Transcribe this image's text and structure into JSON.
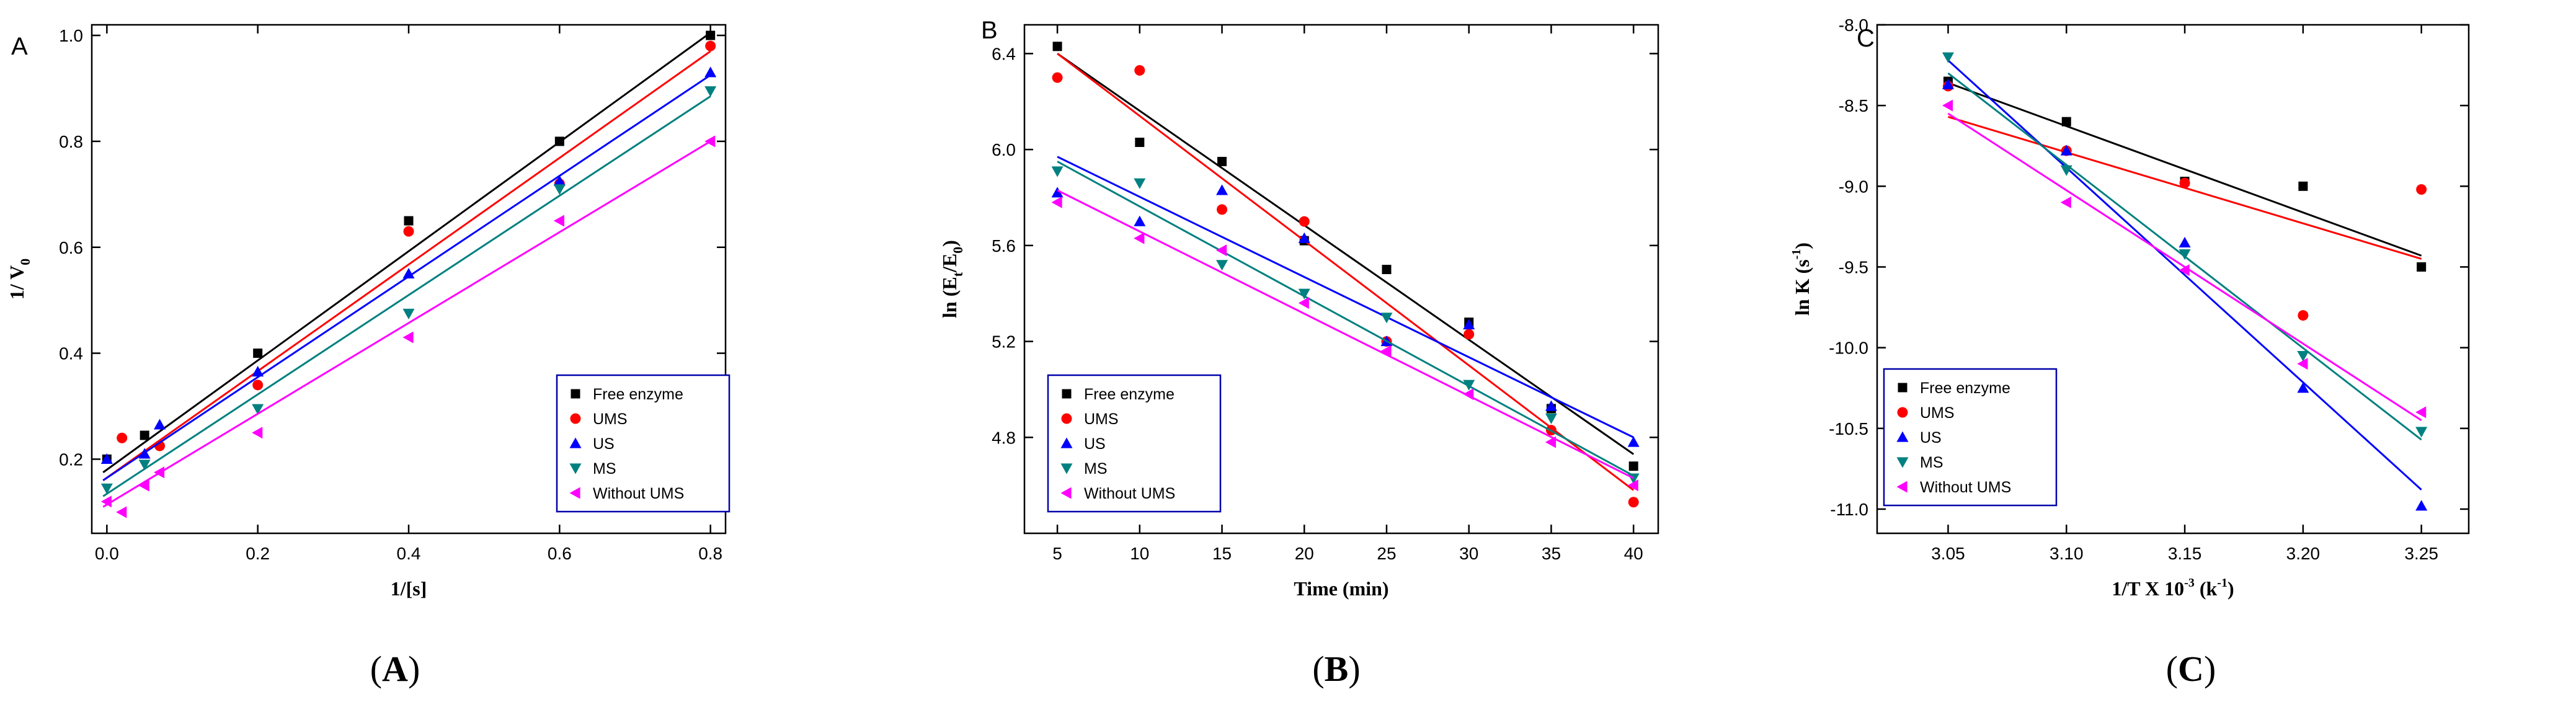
{
  "colors": {
    "free_enzyme": "#000000",
    "ums": "#ff0000",
    "us": "#0000ff",
    "ms": "#008080",
    "without_ums": "#ff00ff",
    "legend_border": "#0000aa"
  },
  "chart_data": [
    {
      "type": "scatter",
      "panel_letter": "A",
      "caption": "(A)",
      "xlabel": "1/[s]",
      "ylabel": "1/ V",
      "ylabel_sub": "0",
      "xlim": [
        -0.02,
        0.82
      ],
      "ylim": [
        0.06,
        1.02
      ],
      "xticks": [
        0.0,
        0.2,
        0.4,
        0.6,
        0.8
      ],
      "xtick_labels": [
        "0.0",
        "0.2",
        "0.4",
        "0.6",
        "0.8"
      ],
      "yticks": [
        0.2,
        0.4,
        0.6,
        0.8,
        1.0
      ],
      "ytick_labels": [
        "0.2",
        "0.4",
        "0.6",
        "0.8",
        "1.0"
      ],
      "legend_position": "bottom-right",
      "series": [
        {
          "name": "Free enzyme",
          "marker": "square",
          "color_key": "free_enzyme",
          "x": [
            0.0,
            0.05,
            0.2,
            0.4,
            0.6,
            0.8
          ],
          "y": [
            0.2,
            0.245,
            0.4,
            0.65,
            0.8,
            1.0
          ],
          "fit": [
            [
              -0.005,
              0.175
            ],
            [
              0.8,
              1.005
            ]
          ]
        },
        {
          "name": "UMS",
          "marker": "circle",
          "color_key": "ums",
          "x": [
            0.02,
            0.07,
            0.2,
            0.4,
            0.6,
            0.8
          ],
          "y": [
            0.24,
            0.225,
            0.34,
            0.63,
            0.72,
            0.98
          ],
          "fit": [
            [
              -0.005,
              0.16
            ],
            [
              0.8,
              0.97
            ]
          ]
        },
        {
          "name": "US",
          "marker": "triangle-up",
          "color_key": "us",
          "x": [
            0.0,
            0.05,
            0.07,
            0.2,
            0.4,
            0.6,
            0.8
          ],
          "y": [
            0.2,
            0.21,
            0.265,
            0.365,
            0.55,
            0.725,
            0.93
          ],
          "fit": [
            [
              -0.005,
              0.16
            ],
            [
              0.8,
              0.925
            ]
          ]
        },
        {
          "name": "MS",
          "marker": "triangle-down",
          "color_key": "ms",
          "x": [
            0.0,
            0.05,
            0.2,
            0.4,
            0.6,
            0.8
          ],
          "y": [
            0.145,
            0.19,
            0.295,
            0.475,
            0.71,
            0.895
          ],
          "fit": [
            [
              -0.005,
              0.13
            ],
            [
              0.8,
              0.885
            ]
          ]
        },
        {
          "name": "Without UMS",
          "marker": "triangle-left",
          "color_key": "without_ums",
          "x": [
            0.0,
            0.02,
            0.05,
            0.07,
            0.2,
            0.4,
            0.6,
            0.8
          ],
          "y": [
            0.12,
            0.1,
            0.15,
            0.175,
            0.25,
            0.43,
            0.65,
            0.8
          ],
          "fit": [
            [
              -0.005,
              0.11
            ],
            [
              0.8,
              0.8
            ]
          ]
        }
      ]
    },
    {
      "type": "scatter",
      "panel_letter": "B",
      "caption": "(B)",
      "xlabel": "Time (min)",
      "ylabel": "ln (E",
      "ylabel_sub1": "t",
      "ylabel_mid": "/E",
      "ylabel_sub2": "0",
      "ylabel_end": ")",
      "xlim": [
        3,
        41.5
      ],
      "ylim": [
        4.4,
        6.52
      ],
      "xticks": [
        5,
        10,
        15,
        20,
        25,
        30,
        35,
        40
      ],
      "xtick_labels": [
        "5",
        "10",
        "15",
        "20",
        "25",
        "30",
        "35",
        "40"
      ],
      "yticks": [
        4.8,
        5.2,
        5.6,
        6.0,
        6.4
      ],
      "ytick_labels": [
        "4.8",
        "5.2",
        "5.6",
        "6.0",
        "6.4"
      ],
      "legend_position": "bottom-left",
      "series": [
        {
          "name": "Free enzyme",
          "marker": "square",
          "color_key": "free_enzyme",
          "x": [
            5,
            10,
            15,
            20,
            25,
            30,
            35,
            40
          ],
          "y": [
            6.43,
            6.03,
            5.95,
            5.62,
            5.5,
            5.28,
            4.92,
            4.68
          ],
          "fit": [
            [
              5,
              6.4
            ],
            [
              40,
              4.73
            ]
          ]
        },
        {
          "name": "UMS",
          "marker": "circle",
          "color_key": "ums",
          "x": [
            5,
            10,
            15,
            20,
            25,
            30,
            35,
            40
          ],
          "y": [
            6.3,
            6.33,
            5.75,
            5.7,
            5.2,
            5.23,
            4.83,
            4.53
          ],
          "fit": [
            [
              5,
              6.4
            ],
            [
              40,
              4.58
            ]
          ]
        },
        {
          "name": "US",
          "marker": "triangle-up",
          "color_key": "us",
          "x": [
            5,
            10,
            15,
            20,
            25,
            30,
            35,
            40
          ],
          "y": [
            5.82,
            5.7,
            5.83,
            5.63,
            5.2,
            5.27,
            4.93,
            4.78
          ],
          "fit": [
            [
              5,
              5.97
            ],
            [
              40,
              4.8
            ]
          ]
        },
        {
          "name": "MS",
          "marker": "triangle-down",
          "color_key": "ms",
          "x": [
            5,
            10,
            15,
            20,
            25,
            30,
            35,
            40
          ],
          "y": [
            5.91,
            5.86,
            5.52,
            5.4,
            5.3,
            5.02,
            4.88,
            4.63
          ],
          "fit": [
            [
              5,
              5.95
            ],
            [
              40,
              4.64
            ]
          ]
        },
        {
          "name": "Without UMS",
          "marker": "triangle-left",
          "color_key": "without_ums",
          "x": [
            5,
            10,
            15,
            20,
            25,
            30,
            35,
            40
          ],
          "y": [
            5.78,
            5.63,
            5.58,
            5.36,
            5.16,
            4.98,
            4.78,
            4.6
          ],
          "fit": [
            [
              5,
              5.83
            ],
            [
              40,
              4.63
            ]
          ]
        }
      ]
    },
    {
      "type": "scatter",
      "panel_letter": "C",
      "caption": "(C)",
      "xlabel": "1/T X 10",
      "xlabel_sup1": "-3",
      "xlabel_mid": " (k",
      "xlabel_sup2": "-1",
      "xlabel_end": ")",
      "ylabel": "ln K (s",
      "ylabel_sup": "-1",
      "ylabel_end": ")",
      "xlim": [
        3.02,
        3.27
      ],
      "ylim": [
        -11.15,
        -8.0
      ],
      "xticks": [
        3.05,
        3.1,
        3.15,
        3.2,
        3.25
      ],
      "xtick_labels": [
        "3.05",
        "3.10",
        "3.15",
        "3.20",
        "3.25"
      ],
      "yticks": [
        -11.0,
        -10.5,
        -10.0,
        -9.5,
        -9.0,
        -8.5,
        -8.0
      ],
      "ytick_labels": [
        "-11.0",
        "-10.5",
        "-10.0",
        "-9.5",
        "-9.0",
        "-8.5",
        "-8.0"
      ],
      "legend_position": "bottom-left",
      "series": [
        {
          "name": "Free enzyme",
          "marker": "square",
          "color_key": "free_enzyme",
          "x": [
            3.05,
            3.1,
            3.15,
            3.2,
            3.25
          ],
          "y": [
            -8.35,
            -8.6,
            -8.97,
            -9.0,
            -9.5
          ],
          "fit": [
            [
              3.05,
              -8.36
            ],
            [
              3.25,
              -9.43
            ]
          ]
        },
        {
          "name": "UMS",
          "marker": "circle",
          "color_key": "ums",
          "x": [
            3.05,
            3.1,
            3.15,
            3.2,
            3.25
          ],
          "y": [
            -8.38,
            -8.78,
            -8.98,
            -9.8,
            -9.02
          ],
          "fit": [
            [
              3.05,
              -8.57
            ],
            [
              3.25,
              -9.45
            ]
          ]
        },
        {
          "name": "US",
          "marker": "triangle-up",
          "color_key": "us",
          "x": [
            3.05,
            3.1,
            3.15,
            3.2,
            3.25
          ],
          "y": [
            -8.37,
            -8.78,
            -9.35,
            -10.25,
            -10.98
          ],
          "fit": [
            [
              3.05,
              -8.22
            ],
            [
              3.25,
              -10.88
            ]
          ]
        },
        {
          "name": "MS",
          "marker": "triangle-down",
          "color_key": "ms",
          "x": [
            3.05,
            3.1,
            3.15,
            3.2,
            3.25
          ],
          "y": [
            -8.2,
            -8.9,
            -9.42,
            -10.05,
            -10.52
          ],
          "fit": [
            [
              3.05,
              -8.3
            ],
            [
              3.25,
              -10.57
            ]
          ]
        },
        {
          "name": "Without UMS",
          "marker": "triangle-left",
          "color_key": "without_ums",
          "x": [
            3.05,
            3.1,
            3.15,
            3.2,
            3.25
          ],
          "y": [
            -8.5,
            -9.1,
            -9.52,
            -10.1,
            -10.4
          ],
          "fit": [
            [
              3.05,
              -8.55
            ],
            [
              3.25,
              -10.45
            ]
          ]
        }
      ]
    }
  ]
}
